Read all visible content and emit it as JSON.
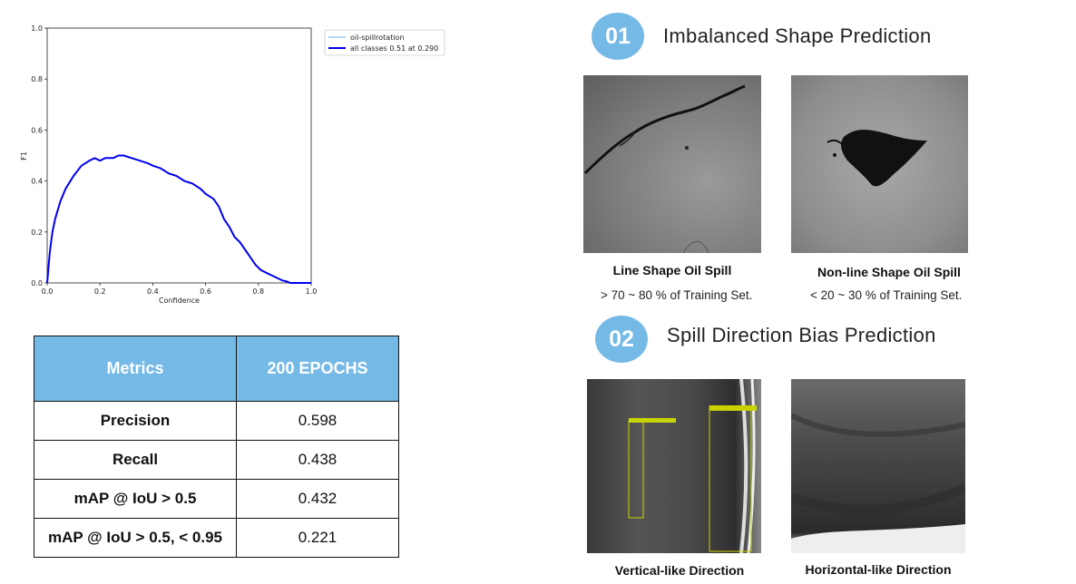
{
  "chart_data": {
    "type": "line",
    "title": "",
    "xlabel": "Confidence",
    "ylabel": "F1",
    "xlim": [
      0,
      1
    ],
    "ylim": [
      0,
      1
    ],
    "xticks": [
      "0.0",
      "0.2",
      "0.4",
      "0.6",
      "0.8",
      "1.0"
    ],
    "yticks": [
      "0.0",
      "0.2",
      "0.4",
      "0.6",
      "0.8",
      "1.0"
    ],
    "legend": [
      "oil-spillrotation",
      "all classes 0.51 at 0.290"
    ],
    "series": [
      {
        "name": "all classes 0.51 at 0.290",
        "color": "#0000ee",
        "x": [
          0.0,
          0.01,
          0.02,
          0.03,
          0.05,
          0.07,
          0.1,
          0.13,
          0.16,
          0.18,
          0.2,
          0.22,
          0.25,
          0.27,
          0.29,
          0.32,
          0.35,
          0.38,
          0.4,
          0.43,
          0.46,
          0.49,
          0.52,
          0.55,
          0.58,
          0.6,
          0.63,
          0.65,
          0.67,
          0.69,
          0.71,
          0.73,
          0.75,
          0.77,
          0.79,
          0.81,
          0.83,
          0.85,
          0.87,
          0.89,
          0.91,
          0.92,
          0.95,
          1.0
        ],
        "y": [
          0.0,
          0.12,
          0.2,
          0.25,
          0.32,
          0.37,
          0.42,
          0.46,
          0.48,
          0.49,
          0.48,
          0.49,
          0.49,
          0.5,
          0.5,
          0.49,
          0.48,
          0.47,
          0.46,
          0.45,
          0.43,
          0.42,
          0.4,
          0.39,
          0.37,
          0.35,
          0.33,
          0.3,
          0.25,
          0.22,
          0.18,
          0.16,
          0.13,
          0.1,
          0.07,
          0.05,
          0.04,
          0.03,
          0.02,
          0.01,
          0.005,
          0.0,
          0.0,
          0.0
        ]
      }
    ]
  },
  "table": {
    "header": [
      "Metrics",
      "200 EPOCHS"
    ],
    "rows": [
      {
        "label": "Precision",
        "value": "0.598"
      },
      {
        "label": "Recall",
        "value": "0.438"
      },
      {
        "label": "mAP @ IoU > 0.5",
        "value": "0.432"
      },
      {
        "label": "mAP @ IoU > 0.5, < 0.95",
        "value": "0.221"
      }
    ]
  },
  "section1": {
    "badge": "01",
    "title": "Imbalanced Shape Prediction",
    "left_caption": "Line Shape Oil Spill",
    "left_sub": "> 70 ~ 80 % of Training Set.",
    "right_caption": "Non-line Shape Oil Spill",
    "right_sub": "< 20 ~ 30 % of Training Set."
  },
  "section2": {
    "badge": "02",
    "title": "Spill Direction Bias Prediction",
    "left_caption": "Vertical-like Direction",
    "right_caption": "Horizontal-like Direction"
  },
  "colors": {
    "accent": "#75b9e6",
    "line": "#0000ee",
    "box": "#c8d400"
  }
}
